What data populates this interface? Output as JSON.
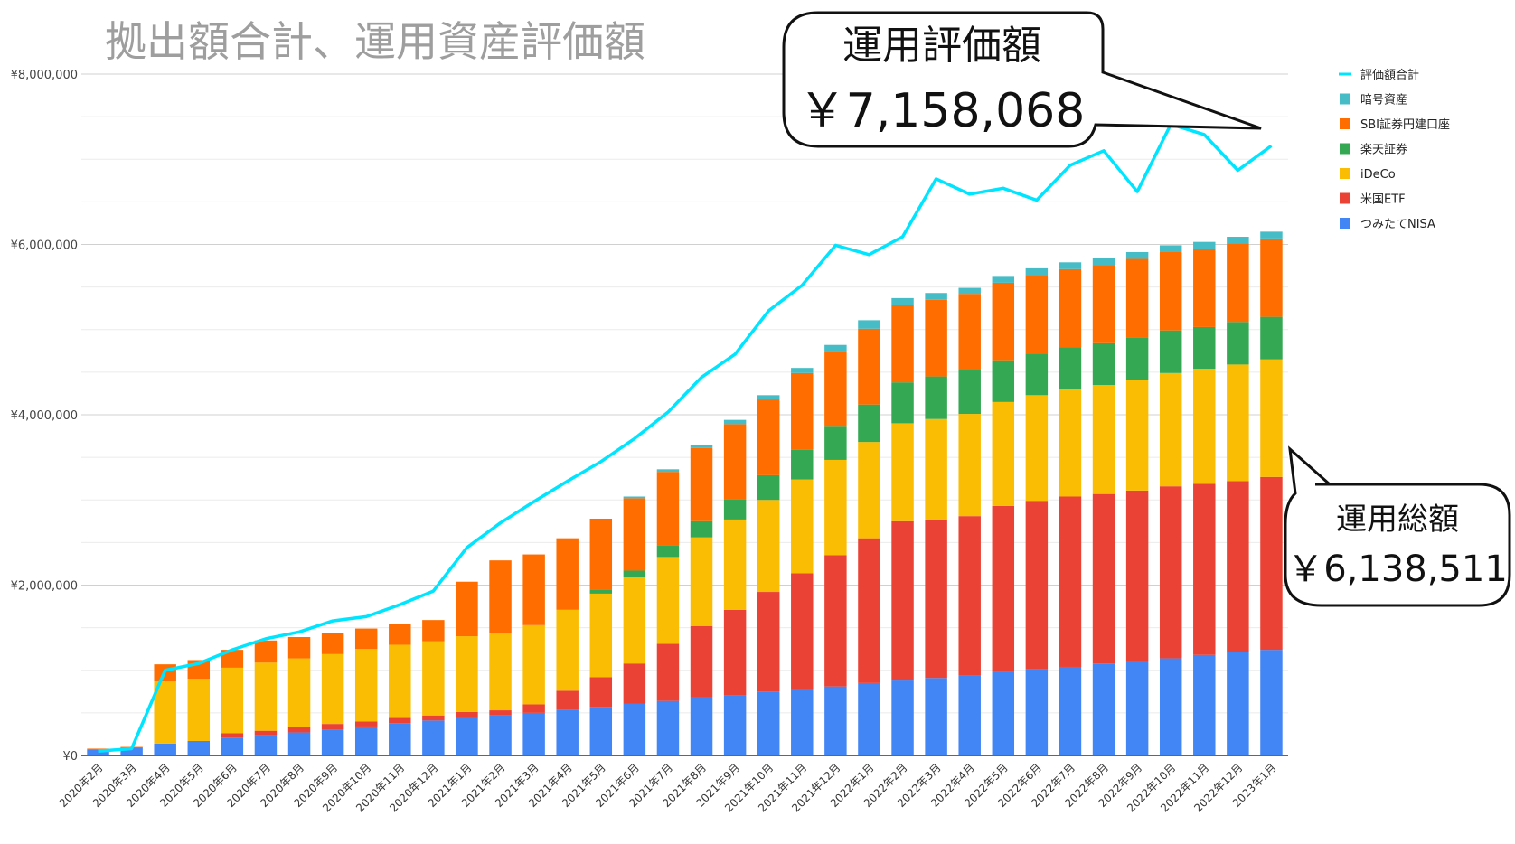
{
  "chart_data": {
    "type": "bar",
    "subtype": "stacked-bar-with-line",
    "title": "拠出額合計、運用資産評価額",
    "ylim": [
      0,
      8000000
    ],
    "yticks": [
      "¥0",
      "¥2,000,000",
      "¥4,000,000",
      "¥6,000,000",
      "¥8,000,000"
    ],
    "grid": true,
    "legend_position": "top-right",
    "categories": [
      "2020年2月",
      "2020年3月",
      "2020年4月",
      "2020年5月",
      "2020年6月",
      "2020年7月",
      "2020年8月",
      "2020年9月",
      "2020年10月",
      "2020年11月",
      "2020年12月",
      "2021年1月",
      "2021年2月",
      "2021年3月",
      "2021年4月",
      "2021年5月",
      "2021年6月",
      "2021年7月",
      "2021年8月",
      "2021年9月",
      "2021年10月",
      "2021年11月",
      "2021年12月",
      "2022年1月",
      "2022年2月",
      "2022年3月",
      "2022年4月",
      "2022年5月",
      "2022年6月",
      "2022年7月",
      "2022年8月",
      "2022年9月",
      "2022年10月",
      "2022年11月",
      "2022年12月",
      "2023年1月"
    ],
    "series": [
      {
        "name": "つみたてNISA",
        "color": "#4285F4",
        "values": [
          70000,
          90000,
          140000,
          170000,
          210000,
          240000,
          270000,
          300000,
          340000,
          380000,
          410000,
          440000,
          470000,
          500000,
          540000,
          570000,
          610000,
          640000,
          680000,
          710000,
          750000,
          780000,
          810000,
          850000,
          880000,
          910000,
          940000,
          980000,
          1010000,
          1040000,
          1080000,
          1110000,
          1140000,
          1180000,
          1210000,
          1240000
        ]
      },
      {
        "name": "米国ETF",
        "color": "#EA4335",
        "values": [
          0,
          0,
          0,
          0,
          50000,
          50000,
          60000,
          70000,
          60000,
          60000,
          60000,
          70000,
          60000,
          100000,
          220000,
          350000,
          470000,
          670000,
          840000,
          1000000,
          1170000,
          1360000,
          1540000,
          1700000,
          1870000,
          1860000,
          1870000,
          1950000,
          1980000,
          2000000,
          1990000,
          2000000,
          2020000,
          2010000,
          2010000,
          2030000
        ]
      },
      {
        "name": "iDeCo",
        "color": "#FBBC04",
        "values": [
          0,
          0,
          730000,
          730000,
          770000,
          800000,
          810000,
          820000,
          850000,
          860000,
          870000,
          890000,
          910000,
          930000,
          950000,
          980000,
          1010000,
          1020000,
          1040000,
          1060000,
          1080000,
          1100000,
          1120000,
          1130000,
          1150000,
          1180000,
          1200000,
          1220000,
          1240000,
          1260000,
          1280000,
          1300000,
          1330000,
          1350000,
          1370000,
          1380000
        ]
      },
      {
        "name": "楽天証券",
        "color": "#34A853",
        "values": [
          0,
          0,
          0,
          0,
          0,
          0,
          0,
          0,
          0,
          0,
          0,
          0,
          0,
          0,
          0,
          50000,
          80000,
          140000,
          190000,
          240000,
          290000,
          350000,
          400000,
          440000,
          480000,
          500000,
          510000,
          490000,
          490000,
          490000,
          490000,
          500000,
          500000,
          490000,
          500000,
          500000
        ]
      },
      {
        "name": "SBI証券円建口座",
        "color": "#FF6D01",
        "values": [
          10000,
          10000,
          200000,
          220000,
          210000,
          260000,
          250000,
          250000,
          240000,
          240000,
          250000,
          640000,
          850000,
          830000,
          840000,
          830000,
          850000,
          860000,
          860000,
          880000,
          890000,
          900000,
          880000,
          890000,
          910000,
          900000,
          900000,
          910000,
          920000,
          920000,
          920000,
          920000,
          920000,
          920000,
          920000,
          920000
        ]
      },
      {
        "name": "暗号資産",
        "color": "#46BDC6",
        "values": [
          0,
          0,
          0,
          0,
          0,
          0,
          0,
          0,
          0,
          0,
          0,
          0,
          0,
          0,
          0,
          0,
          20000,
          30000,
          40000,
          50000,
          50000,
          60000,
          70000,
          100000,
          80000,
          80000,
          70000,
          80000,
          80000,
          80000,
          80000,
          80000,
          80000,
          80000,
          80000,
          80000
        ]
      },
      {
        "name": "評価額合計",
        "color": "#00E5FF",
        "kind": "line",
        "values": [
          50000,
          80000,
          1000000,
          1080000,
          1240000,
          1370000,
          1450000,
          1580000,
          1630000,
          1770000,
          1930000,
          2440000,
          2730000,
          2980000,
          3220000,
          3450000,
          3720000,
          4030000,
          4440000,
          4710000,
          5220000,
          5520000,
          5990000,
          5880000,
          6090000,
          6770000,
          6590000,
          6660000,
          6520000,
          6930000,
          7100000,
          6620000,
          7410000,
          7290000,
          6870000,
          7158068
        ]
      }
    ],
    "annotations": [
      {
        "title": "運用評価額",
        "value": "￥7,158,068"
      },
      {
        "title": "運用総額",
        "value": "￥6,138,511"
      }
    ]
  }
}
